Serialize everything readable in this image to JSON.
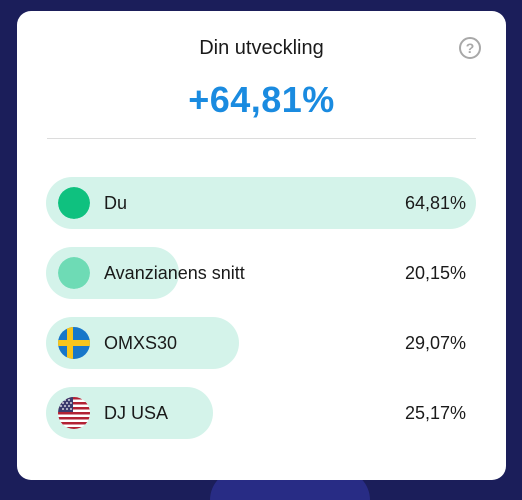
{
  "widget": {
    "title": "Din utveckling",
    "percentage": "+64,81%",
    "help_icon": "question-circle-icon"
  },
  "rows": [
    {
      "label": "Du",
      "value": "64,81%",
      "fill": 1.0,
      "icon": "dot-green",
      "color": "#0fc17f"
    },
    {
      "label": "Avanzianens snitt",
      "value": "20,15%",
      "fill": 0.31,
      "icon": "dot-lightgreen",
      "color": "#6edbb5"
    },
    {
      "label": "OMXS30",
      "value": "29,07%",
      "fill": 0.448,
      "icon": "flag-sweden",
      "color": "#1877c9"
    },
    {
      "label": "DJ USA",
      "value": "25,17%",
      "fill": 0.388,
      "icon": "flag-usa",
      "color": "#b22234"
    }
  ],
  "colors": {
    "accent": "#1a8be0",
    "bar": "#d4f3ea",
    "background": "#1b1e5a"
  }
}
